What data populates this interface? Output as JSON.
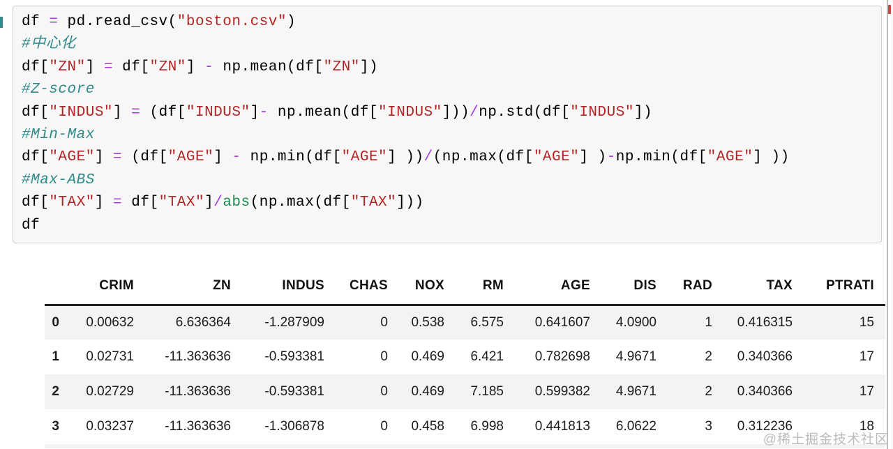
{
  "page": {
    "watermark": "@稀土掘金技术社区"
  },
  "colors": {
    "comment": "#2e8b8b",
    "string": "#b42424",
    "operator": "#a93ae0",
    "builtin": "#1e8b4d",
    "cell_background": "#f7f7f7",
    "cell_border": "#cfcfcf",
    "row_stripe": "#f3f3f3"
  },
  "cell": {
    "code_lines": [
      [
        [
          "df ",
          "p"
        ],
        [
          "=",
          "o"
        ],
        [
          " pd.read_csv(",
          "p"
        ],
        [
          "\"boston.csv\"",
          "s"
        ],
        [
          ")",
          "p"
        ]
      ],
      [
        [
          "#中心化",
          "c"
        ]
      ],
      [
        [
          "df[",
          "p"
        ],
        [
          "\"ZN\"",
          "s"
        ],
        [
          "] ",
          "p"
        ],
        [
          "=",
          "o"
        ],
        [
          " df[",
          "p"
        ],
        [
          "\"ZN\"",
          "s"
        ],
        [
          "] ",
          "p"
        ],
        [
          "-",
          "o"
        ],
        [
          " np.mean(df[",
          "p"
        ],
        [
          "\"ZN\"",
          "s"
        ],
        [
          "])",
          "p"
        ]
      ],
      [
        [
          "#Z-score",
          "c"
        ]
      ],
      [
        [
          "df[",
          "p"
        ],
        [
          "\"INDUS\"",
          "s"
        ],
        [
          "] ",
          "p"
        ],
        [
          "=",
          "o"
        ],
        [
          " (df[",
          "p"
        ],
        [
          "\"INDUS\"",
          "s"
        ],
        [
          "]",
          "p"
        ],
        [
          "-",
          "o"
        ],
        [
          " np.mean(df[",
          "p"
        ],
        [
          "\"INDUS\"",
          "s"
        ],
        [
          "]))",
          "p"
        ],
        [
          "/",
          "o"
        ],
        [
          "np.std(df[",
          "p"
        ],
        [
          "\"INDUS\"",
          "s"
        ],
        [
          "])",
          "p"
        ]
      ],
      [
        [
          "#Min-Max",
          "c"
        ]
      ],
      [
        [
          "df[",
          "p"
        ],
        [
          "\"AGE\"",
          "s"
        ],
        [
          "] ",
          "p"
        ],
        [
          "=",
          "o"
        ],
        [
          " (df[",
          "p"
        ],
        [
          "\"AGE\"",
          "s"
        ],
        [
          "] ",
          "p"
        ],
        [
          "-",
          "o"
        ],
        [
          " np.min(df[",
          "p"
        ],
        [
          "\"AGE\"",
          "s"
        ],
        [
          "] ))",
          "p"
        ],
        [
          "/",
          "o"
        ],
        [
          "(np.max(df[",
          "p"
        ],
        [
          "\"AGE\"",
          "s"
        ],
        [
          "] )",
          "p"
        ],
        [
          "-",
          "o"
        ],
        [
          "np.min(df[",
          "p"
        ],
        [
          "\"AGE\"",
          "s"
        ],
        [
          "] ))",
          "p"
        ]
      ],
      [
        [
          "#Max-ABS",
          "c"
        ]
      ],
      [
        [
          "df[",
          "p"
        ],
        [
          "\"TAX\"",
          "s"
        ],
        [
          "] ",
          "p"
        ],
        [
          "=",
          "o"
        ],
        [
          " df[",
          "p"
        ],
        [
          "\"TAX\"",
          "s"
        ],
        [
          "]",
          "p"
        ],
        [
          "/",
          "o"
        ],
        [
          "abs",
          "b"
        ],
        [
          "(np.max(df[",
          "p"
        ],
        [
          "\"TAX\"",
          "s"
        ],
        [
          "]))",
          "p"
        ]
      ],
      [
        [
          "df",
          "p"
        ]
      ]
    ]
  },
  "table": {
    "columns": [
      "",
      "CRIM",
      "ZN",
      "INDUS",
      "CHAS",
      "NOX",
      "RM",
      "AGE",
      "DIS",
      "RAD",
      "TAX",
      "PTRATI"
    ],
    "rows": [
      [
        "0",
        "0.00632",
        "6.636364",
        "-1.287909",
        "0",
        "0.538",
        "6.575",
        "0.641607",
        "4.0900",
        "1",
        "0.416315",
        "15"
      ],
      [
        "1",
        "0.02731",
        "-11.363636",
        "-0.593381",
        "0",
        "0.469",
        "6.421",
        "0.782698",
        "4.9671",
        "2",
        "0.340366",
        "17"
      ],
      [
        "2",
        "0.02729",
        "-11.363636",
        "-0.593381",
        "0",
        "0.469",
        "7.185",
        "0.599382",
        "4.9671",
        "2",
        "0.340366",
        "17"
      ],
      [
        "3",
        "0.03237",
        "-11.363636",
        "-1.306878",
        "0",
        "0.458",
        "6.998",
        "0.441813",
        "6.0622",
        "3",
        "0.312236",
        "18"
      ]
    ]
  }
}
